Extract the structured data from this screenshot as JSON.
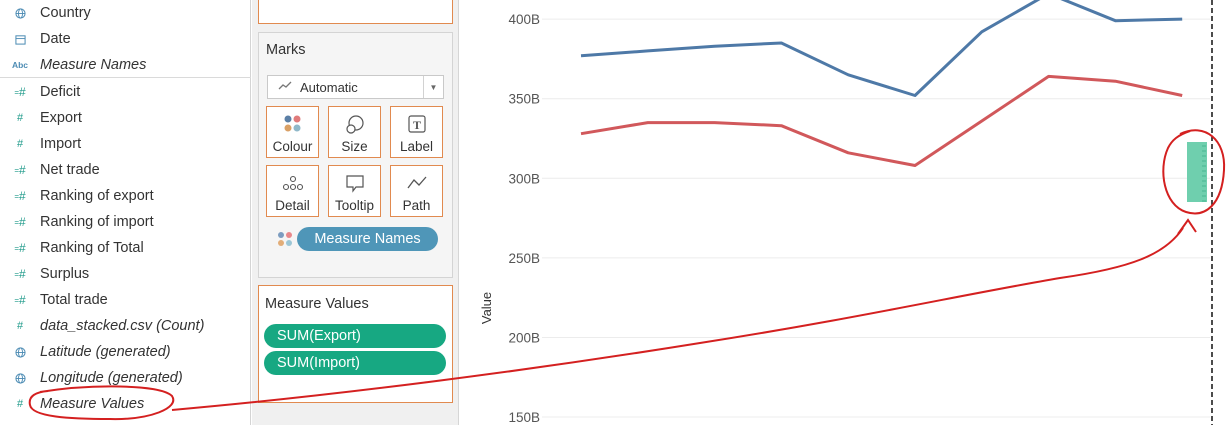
{
  "data_pane": {
    "dimensions": [
      {
        "label": "Country",
        "icon": "globe-icon",
        "italic": false
      },
      {
        "label": "Date",
        "icon": "calendar-icon",
        "italic": false
      },
      {
        "label": "Measure Names",
        "icon": "abc-icon",
        "italic": true
      }
    ],
    "measures": [
      {
        "label": "Deficit",
        "icon": "calc-measure-icon",
        "italic": false
      },
      {
        "label": "Export",
        "icon": "measure-icon",
        "italic": false
      },
      {
        "label": "Import",
        "icon": "measure-icon",
        "italic": false
      },
      {
        "label": "Net trade",
        "icon": "calc-measure-icon",
        "italic": false
      },
      {
        "label": "Ranking of export",
        "icon": "calc-measure-icon",
        "italic": false
      },
      {
        "label": "Ranking of import",
        "icon": "calc-measure-icon",
        "italic": false
      },
      {
        "label": "Ranking of Total",
        "icon": "calc-measure-icon",
        "italic": false
      },
      {
        "label": "Surplus",
        "icon": "calc-measure-icon",
        "italic": false
      },
      {
        "label": "Total trade",
        "icon": "calc-measure-icon",
        "italic": false
      },
      {
        "label": "data_stacked.csv (Count)",
        "icon": "measure-icon",
        "italic": true
      },
      {
        "label": "Latitude (generated)",
        "icon": "globe-icon",
        "italic": true
      },
      {
        "label": "Longitude (generated)",
        "icon": "globe-icon",
        "italic": true
      },
      {
        "label": "Measure Values",
        "icon": "measure-icon",
        "italic": true
      }
    ]
  },
  "marks": {
    "title": "Marks",
    "mark_type": "Automatic",
    "buttons": [
      {
        "label": "Colour",
        "icon": "colour-dots-icon"
      },
      {
        "label": "Size",
        "icon": "size-icon"
      },
      {
        "label": "Label",
        "icon": "label-icon"
      },
      {
        "label": "Detail",
        "icon": "detail-dots-icon"
      },
      {
        "label": "Tooltip",
        "icon": "tooltip-icon"
      },
      {
        "label": "Path",
        "icon": "path-icon"
      }
    ],
    "colour_pill": "Measure Names"
  },
  "measure_values": {
    "title": "Measure Values",
    "pills": [
      "SUM(Export)",
      "SUM(Import)"
    ]
  },
  "chart_data": {
    "type": "line",
    "ylabel": "Value",
    "y_ticks": [
      "400B",
      "350B",
      "300B",
      "250B",
      "200B",
      "150B"
    ],
    "ylim": [
      145,
      412
    ],
    "series": [
      {
        "color": "#4e79a7",
        "values": [
          377,
          380,
          383,
          385,
          365,
          352,
          392,
          416,
          399,
          400
        ]
      },
      {
        "color": "#d1585b",
        "values": [
          328,
          335,
          335,
          333,
          316,
          308,
          336,
          364,
          361,
          352
        ]
      }
    ],
    "drop_target_color": "#6fcfae"
  },
  "colors": {
    "orange_border": "#e18a4f",
    "pill_blue": "#4f96b8",
    "pill_green": "#17a882",
    "annotation_red": "#d42020"
  }
}
